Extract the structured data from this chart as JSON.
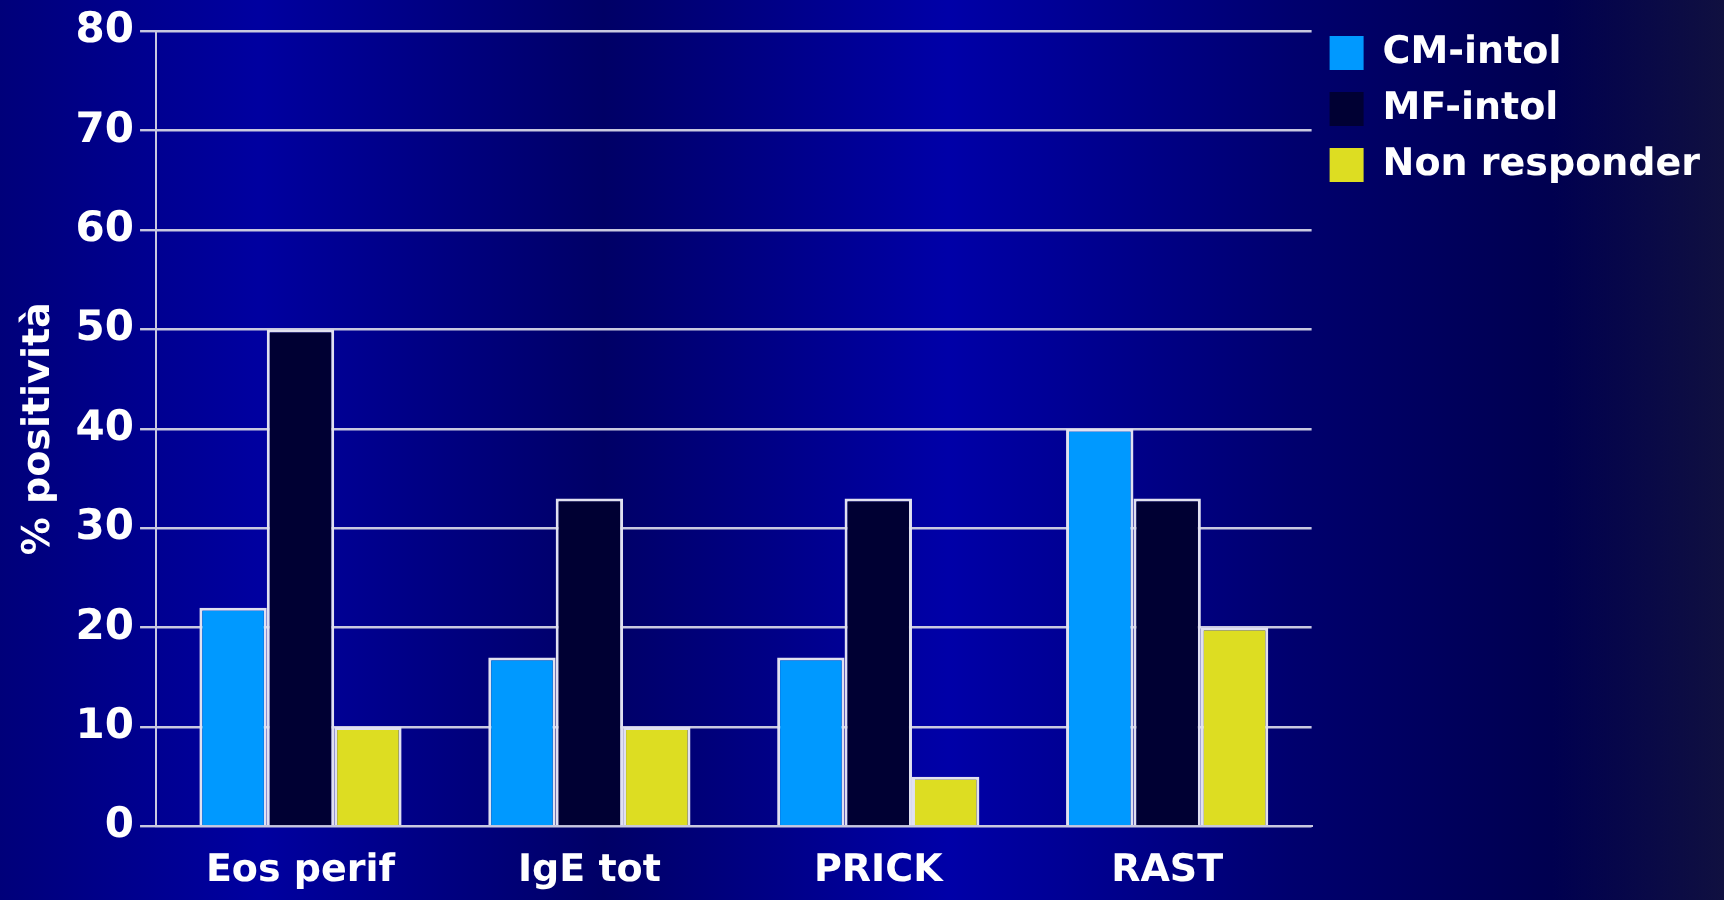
{
  "chart_data": {
    "type": "bar",
    "ylabel": "% positività",
    "categories": [
      "Eos perif",
      "IgE tot",
      "PRICK",
      "RAST"
    ],
    "series": [
      {
        "name": "CM-intol",
        "color": "#0099ff",
        "values": [
          22,
          17,
          17,
          40
        ]
      },
      {
        "name": "MF-intol",
        "color": "#000033",
        "values": [
          50,
          33,
          33,
          33
        ]
      },
      {
        "name": "Non responder",
        "color": "#dddd22",
        "values": [
          10,
          10,
          5,
          20
        ]
      }
    ],
    "ylim": [
      0,
      80
    ],
    "yticks": [
      0,
      10,
      20,
      30,
      40,
      50,
      60,
      70,
      80
    ],
    "grid": "y",
    "legend": "top right"
  }
}
